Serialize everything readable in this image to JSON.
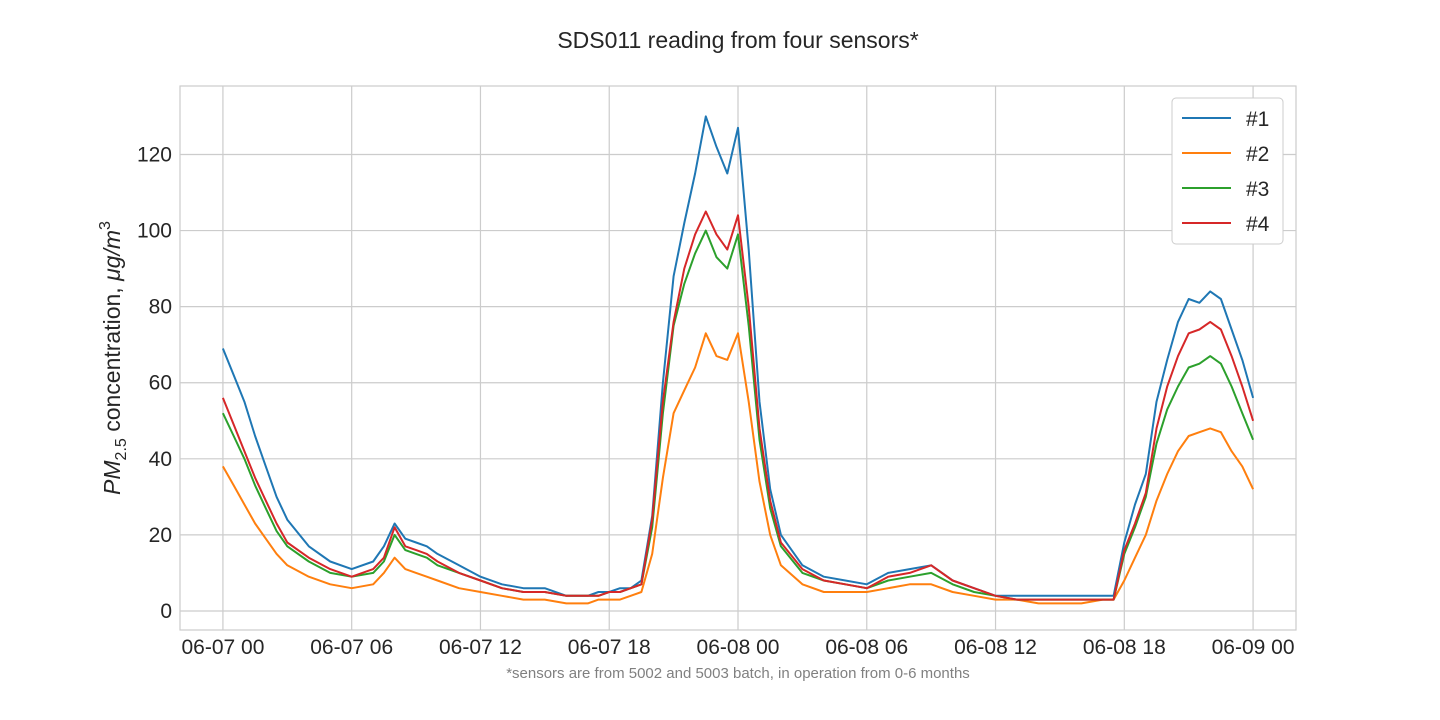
{
  "chart_data": {
    "type": "line",
    "title": "SDS011 reading from four sensors*",
    "ylabel_parts": {
      "pm": "PM",
      "sub": "2.5",
      "mid": " concentration, ",
      "unit": "μg/m",
      "sup": "3"
    },
    "footnote": "*sensors are from 5002 and 5003 batch, in operation from 0-6 months",
    "x_ticks": [
      "06-07 00",
      "06-07 06",
      "06-07 12",
      "06-07 18",
      "06-08 00",
      "06-08 06",
      "06-08 12",
      "06-08 18",
      "06-09 00"
    ],
    "x_range_hours": [
      -2.0,
      50.0
    ],
    "y_ticks": [
      0,
      20,
      40,
      60,
      80,
      100,
      120
    ],
    "ylim": [
      -5,
      138
    ],
    "grid": true,
    "legend_position": "upper-right",
    "x_hours": [
      0,
      0.5,
      1,
      1.5,
      2,
      2.5,
      3,
      4,
      5,
      6,
      7,
      7.5,
      8,
      8.5,
      9,
      9.5,
      10,
      11,
      12,
      13,
      14,
      15,
      16,
      17,
      17.5,
      18,
      18.5,
      19,
      19.5,
      20,
      20.5,
      21,
      21.5,
      22,
      22.5,
      23,
      23.5,
      24,
      24.5,
      25,
      25.5,
      26,
      27,
      28,
      29,
      30,
      31,
      32,
      33,
      34,
      35,
      36,
      37,
      38,
      39,
      40,
      41,
      41.5,
      42,
      42.5,
      43,
      43.5,
      44,
      44.5,
      45,
      45.5,
      46,
      46.5,
      47,
      47.5,
      48
    ],
    "series": [
      {
        "name": "#1",
        "color": "#1f77b4",
        "values": [
          69,
          62,
          55,
          46,
          38,
          30,
          24,
          17,
          13,
          11,
          13,
          17,
          23,
          19,
          18,
          17,
          15,
          12,
          9,
          7,
          6,
          6,
          4,
          4,
          5,
          5,
          6,
          6,
          8,
          25,
          60,
          88,
          102,
          115,
          130,
          122,
          115,
          127,
          95,
          55,
          32,
          20,
          12,
          9,
          8,
          7,
          10,
          11,
          12,
          8,
          6,
          4,
          4,
          4,
          4,
          4,
          4,
          4,
          18,
          28,
          36,
          55,
          66,
          76,
          82,
          81,
          84,
          82,
          74,
          66,
          56
        ]
      },
      {
        "name": "#2",
        "color": "#ff7f0e",
        "values": [
          38,
          33,
          28,
          23,
          19,
          15,
          12,
          9,
          7,
          6,
          7,
          10,
          14,
          11,
          10,
          9,
          8,
          6,
          5,
          4,
          3,
          3,
          2,
          2,
          3,
          3,
          3,
          4,
          5,
          15,
          35,
          52,
          58,
          64,
          73,
          67,
          66,
          73,
          55,
          34,
          20,
          12,
          7,
          5,
          5,
          5,
          6,
          7,
          7,
          5,
          4,
          3,
          3,
          2,
          2,
          2,
          3,
          3,
          8,
          14,
          20,
          29,
          36,
          42,
          46,
          47,
          48,
          47,
          42,
          38,
          32
        ]
      },
      {
        "name": "#3",
        "color": "#2ca02c",
        "values": [
          52,
          46,
          40,
          33,
          27,
          21,
          17,
          13,
          10,
          9,
          10,
          13,
          20,
          16,
          15,
          14,
          12,
          10,
          8,
          6,
          5,
          5,
          4,
          4,
          4,
          5,
          5,
          6,
          7,
          22,
          52,
          75,
          86,
          94,
          100,
          93,
          90,
          99,
          75,
          45,
          27,
          17,
          10,
          8,
          7,
          6,
          8,
          9,
          10,
          7,
          5,
          4,
          3,
          3,
          3,
          3,
          3,
          3,
          15,
          22,
          30,
          44,
          53,
          59,
          64,
          65,
          67,
          65,
          59,
          52,
          45
        ]
      },
      {
        "name": "#4",
        "color": "#d62728",
        "values": [
          56,
          49,
          42,
          35,
          29,
          23,
          18,
          14,
          11,
          9,
          11,
          14,
          22,
          17,
          16,
          15,
          13,
          10,
          8,
          6,
          5,
          5,
          4,
          4,
          4,
          5,
          5,
          6,
          7,
          24,
          55,
          76,
          90,
          99,
          105,
          99,
          95,
          104,
          80,
          48,
          29,
          18,
          11,
          8,
          7,
          6,
          9,
          10,
          12,
          8,
          6,
          4,
          3,
          3,
          3,
          3,
          3,
          3,
          16,
          23,
          31,
          48,
          59,
          67,
          73,
          74,
          76,
          74,
          67,
          59,
          50
        ]
      }
    ]
  }
}
